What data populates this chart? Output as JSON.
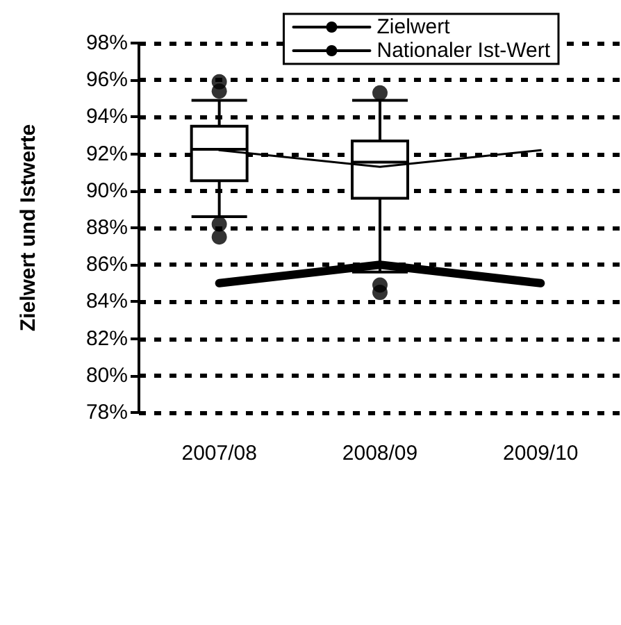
{
  "chart_data": {
    "type": "box",
    "ylabel": "Zielwert und Istwerte",
    "categories": [
      "2007/08",
      "2008/09",
      "2009/10"
    ],
    "boxes": [
      {
        "low": 88.6,
        "q1": 90.55,
        "median": 92.25,
        "q3": 93.5,
        "high": 94.9,
        "outliers": [
          95.9,
          95.4,
          88.2,
          87.5
        ]
      },
      {
        "low": 85.6,
        "q1": 89.6,
        "median": 91.55,
        "q3": 92.7,
        "high": 94.9,
        "outliers": [
          95.3,
          84.9,
          84.5
        ]
      },
      null
    ],
    "series": [
      {
        "type": "line",
        "name": "Zielwert",
        "color": "#000000",
        "values": [
          85.0,
          86.0,
          85.0
        ]
      },
      {
        "type": "line",
        "name": "Nationaler Ist-Wert",
        "color": "#000000",
        "values": [
          92.2,
          91.3,
          92.2
        ]
      }
    ],
    "ylim": [
      78,
      98
    ],
    "yticks": [
      {
        "value": 78,
        "label": "78%"
      },
      {
        "value": 80,
        "label": "80%"
      },
      {
        "value": 82,
        "label": "82%"
      },
      {
        "value": 84,
        "label": "84%"
      },
      {
        "value": 86,
        "label": "86%"
      },
      {
        "value": 88,
        "label": "88%"
      },
      {
        "value": 90,
        "label": "90%"
      },
      {
        "value": 92,
        "label": "92%"
      },
      {
        "value": 94,
        "label": "94%"
      },
      {
        "value": 96,
        "label": "96%"
      },
      {
        "value": 98,
        "label": "98%"
      }
    ],
    "grid": "y",
    "legend": "top right",
    "marker": "none",
    "line_style": "solid"
  }
}
